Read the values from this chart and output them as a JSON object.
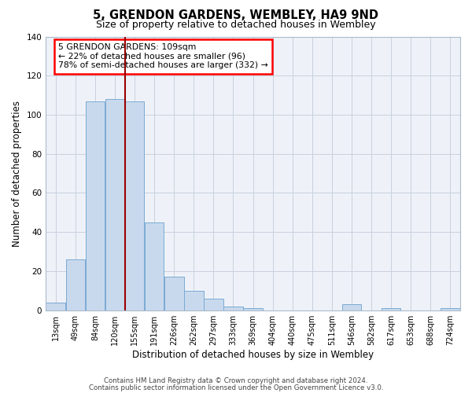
{
  "title": "5, GRENDON GARDENS, WEMBLEY, HA9 9ND",
  "subtitle": "Size of property relative to detached houses in Wembley",
  "xlabel": "Distribution of detached houses by size in Wembley",
  "ylabel": "Number of detached properties",
  "bin_labels": [
    "13sqm",
    "49sqm",
    "84sqm",
    "120sqm",
    "155sqm",
    "191sqm",
    "226sqm",
    "262sqm",
    "297sqm",
    "333sqm",
    "369sqm",
    "404sqm",
    "440sqm",
    "475sqm",
    "511sqm",
    "546sqm",
    "582sqm",
    "617sqm",
    "653sqm",
    "688sqm",
    "724sqm"
  ],
  "bar_heights": [
    4,
    26,
    107,
    108,
    107,
    45,
    17,
    10,
    6,
    2,
    1,
    0,
    0,
    0,
    0,
    3,
    0,
    1,
    0,
    0,
    1
  ],
  "bar_color": "#c9d9ed",
  "bar_edge_color": "#7aaad4",
  "ylim": [
    0,
    140
  ],
  "yticks": [
    0,
    20,
    40,
    60,
    80,
    100,
    120,
    140
  ],
  "red_line_x": 3.5,
  "annotation_title": "5 GRENDON GARDENS: 109sqm",
  "annotation_line1": "← 22% of detached houses are smaller (96)",
  "annotation_line2": "78% of semi-detached houses are larger (332) →",
  "footer1": "Contains HM Land Registry data © Crown copyright and database right 2024.",
  "footer2": "Contains public sector information licensed under the Open Government Licence v3.0.",
  "background_color": "#eef2f8",
  "grid_color": "#c8d0df",
  "spine_color": "#aabbcc"
}
